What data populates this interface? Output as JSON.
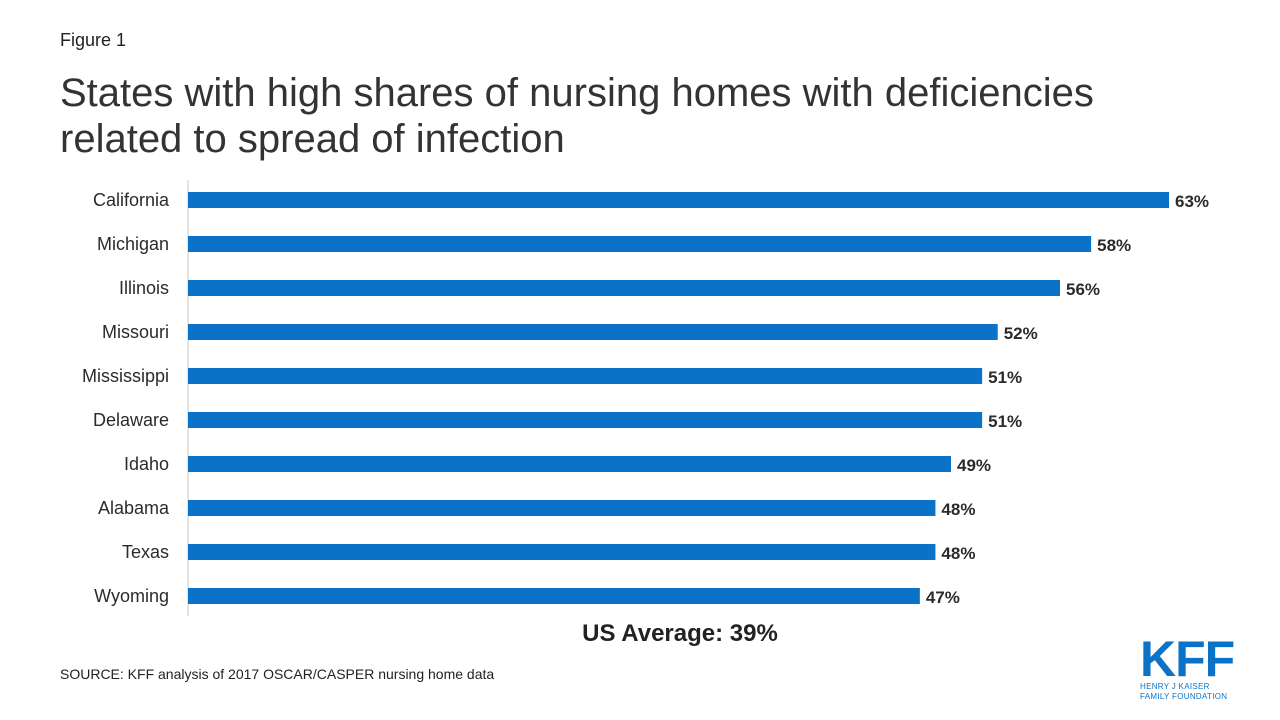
{
  "figure_label": "Figure 1",
  "title": "States with high shares of nursing homes with deficiencies related to spread of infection",
  "us_average_label": "US Average: 39%",
  "source": "SOURCE: KFF analysis of 2017 OSCAR/CASPER nursing home data",
  "logo": {
    "mark": "KFF",
    "line1": "HENRY J KAISER",
    "line2": "FAMILY FOUNDATION"
  },
  "colors": {
    "bar": "#0b73c7",
    "axis": "#c8c8c8",
    "text": "#2b2b2b"
  },
  "chart_data": {
    "type": "bar",
    "orientation": "horizontal",
    "categories": [
      "California",
      "Michigan",
      "Illinois",
      "Missouri",
      "Mississippi",
      "Delaware",
      "Idaho",
      "Alabama",
      "Texas",
      "Wyoming"
    ],
    "values": [
      63,
      58,
      56,
      52,
      51,
      51,
      49,
      48,
      48,
      47
    ],
    "value_labels": [
      "63%",
      "58%",
      "56%",
      "52%",
      "51%",
      "51%",
      "49%",
      "48%",
      "48%",
      "47%"
    ],
    "xlim": [
      0,
      63
    ],
    "grid": false,
    "legend": "none"
  }
}
